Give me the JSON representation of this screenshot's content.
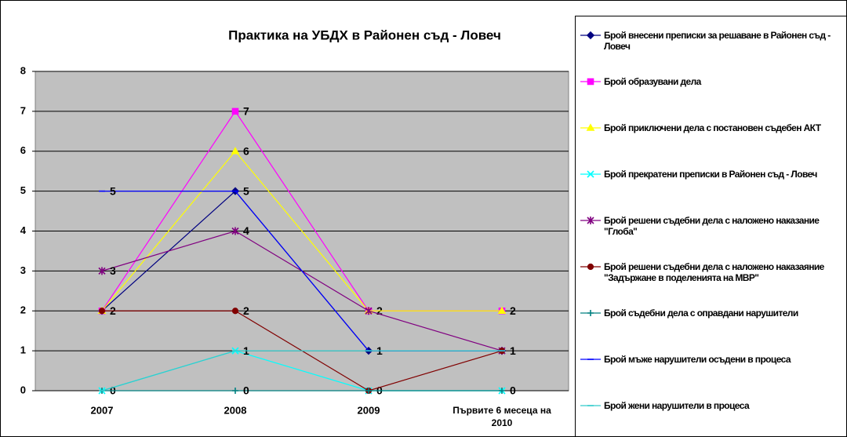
{
  "chart_data": {
    "type": "line",
    "title": "Практика на УБДХ в Районен съд - Ловеч",
    "categories": [
      "2007",
      "2008",
      "2009",
      "Първите 6 месеца на 2010"
    ],
    "ylim": [
      0,
      8
    ],
    "yticks": [
      0,
      1,
      2,
      3,
      4,
      5,
      6,
      7,
      8
    ],
    "grid": true,
    "legend": "right",
    "series": [
      {
        "name": "Брой внесени преписки за решаване в Районен съд - Ловеч",
        "color": "#000080",
        "marker": "diamond",
        "values": [
          2,
          5,
          1,
          1
        ]
      },
      {
        "name": "Брой образувани дела",
        "color": "#FF00FF",
        "marker": "square",
        "values": [
          2,
          7,
          2,
          2
        ]
      },
      {
        "name": "Брой приключени дела с постановен съдебен АКТ",
        "color": "#FFFF00",
        "marker": "triangle",
        "values": [
          2,
          6,
          2,
          2
        ]
      },
      {
        "name": "Брой прекратени преписки в Районен съд - Ловеч",
        "color": "#00FFFF",
        "marker": "x",
        "values": [
          0,
          1,
          0,
          0
        ]
      },
      {
        "name": "Брой решени съдебни дела с наложено наказание \"Глоба\"",
        "color": "#800080",
        "marker": "asterisk",
        "values": [
          3,
          4,
          2,
          1
        ]
      },
      {
        "name": "Брой решени съдебни дела с наложено наказаяние \"Задържане в поделенията на МВР\"",
        "color": "#800000",
        "marker": "circle",
        "values": [
          2,
          2,
          0,
          1
        ]
      },
      {
        "name": "Брой съдебни дела с оправдани нарушители",
        "color": "#008080",
        "marker": "plus",
        "values": [
          0,
          0,
          0,
          0
        ]
      },
      {
        "name": "Брой мъже нарушители осъдени в процеса",
        "color": "#0000FF",
        "marker": "dash",
        "values": [
          5,
          5,
          1,
          1
        ]
      },
      {
        "name": "Брой жени нарушители в процеса",
        "color": "#33CCCC",
        "marker": "dash",
        "values": [
          0,
          1,
          1,
          1
        ]
      }
    ]
  }
}
